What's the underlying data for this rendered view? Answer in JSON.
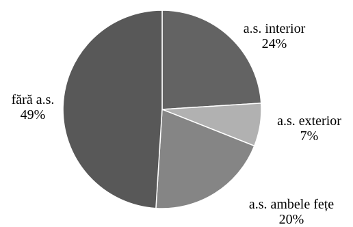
{
  "chart_data": {
    "type": "pie",
    "start_angle_deg": 0,
    "direction": "clockwise",
    "slices": [
      {
        "label": "a.s. interior",
        "value": 24,
        "display": "24%",
        "color": "#636363"
      },
      {
        "label": "a.s. exterior",
        "value": 7,
        "display": "7%",
        "color": "#b1b1b1"
      },
      {
        "label": "a.s. ambele fețe",
        "value": 20,
        "display": "20%",
        "color": "#858585"
      },
      {
        "label": "fără a.s.",
        "value": 49,
        "display": "49%",
        "color": "#585858"
      }
    ],
    "edge_color": "#ffffff"
  }
}
